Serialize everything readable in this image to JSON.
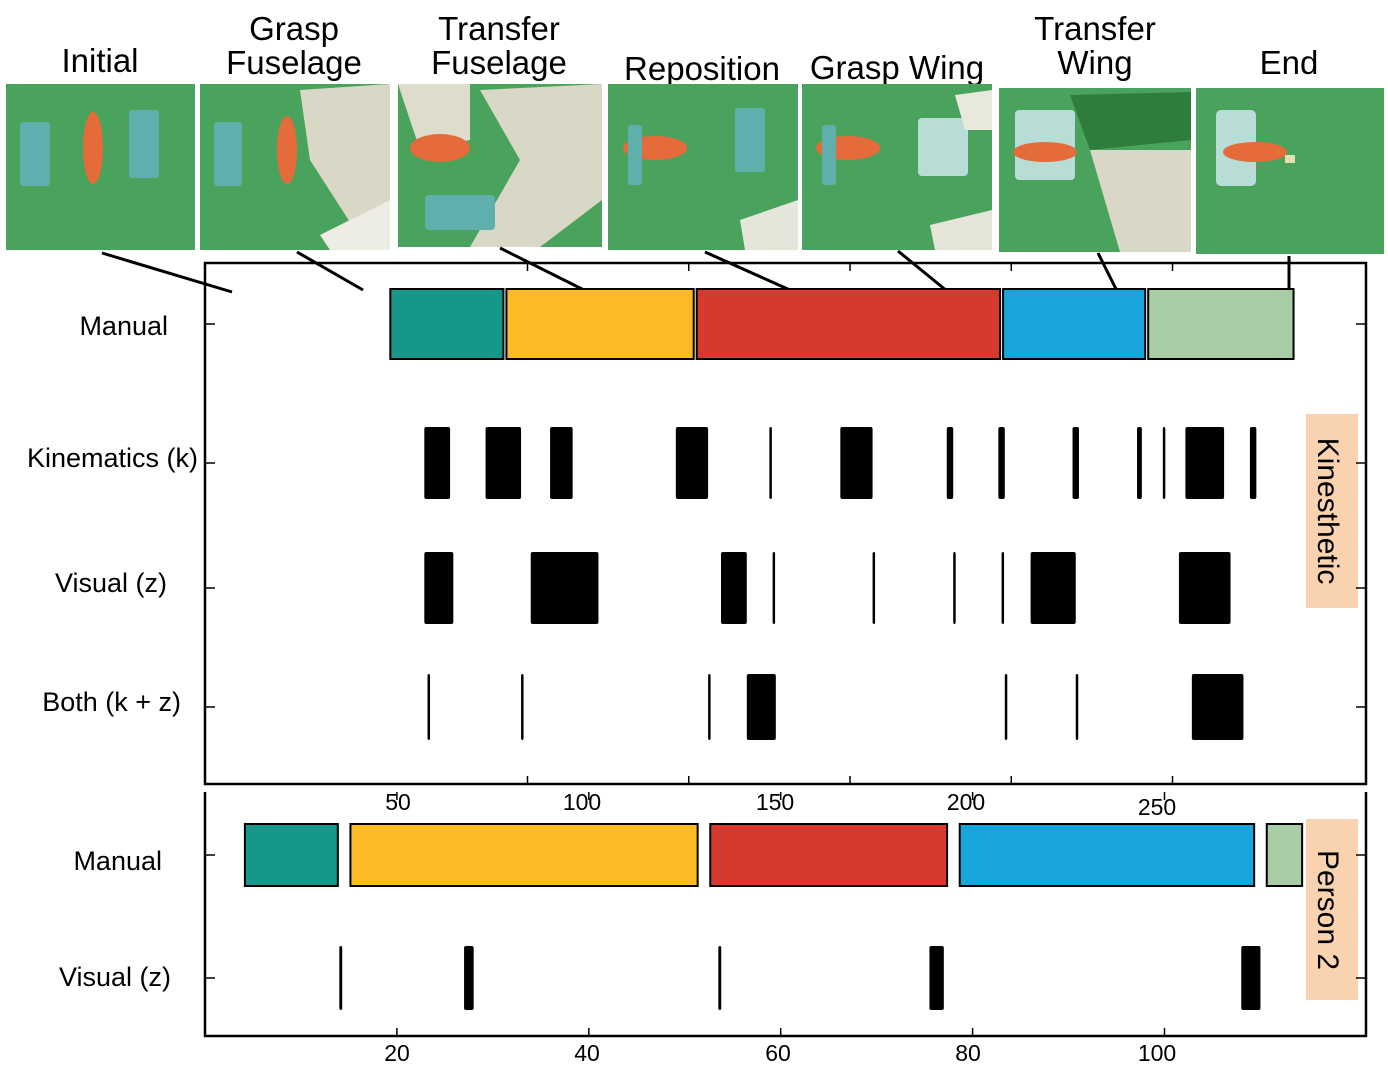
{
  "stages": [
    {
      "key": "initial",
      "lines": [
        "Initial"
      ]
    },
    {
      "key": "grasp-fuselage",
      "lines": [
        "Grasp",
        "Fuselage"
      ]
    },
    {
      "key": "transfer-fuselage",
      "lines": [
        "Transfer",
        "Fuselage"
      ]
    },
    {
      "key": "reposition",
      "lines": [
        "Reposition"
      ]
    },
    {
      "key": "grasp-wing",
      "lines": [
        "Grasp Wing"
      ]
    },
    {
      "key": "transfer-wing",
      "lines": [
        "Transfer",
        "Wing"
      ]
    },
    {
      "key": "end",
      "lines": [
        "End"
      ]
    }
  ],
  "colors": {
    "initial": "#16978a",
    "grasp_fuselage": "#fcba27",
    "reposition": "#d6392e",
    "grasp_wing": "#17a5db",
    "transfer_wing": "#a8cda6",
    "marks": "#000000",
    "photo_bg": "#4aa35c",
    "side_label_bg": "#f9d3b0"
  },
  "chart_data": [
    {
      "type": "timeline",
      "name": "Kinesthetic",
      "side_label": "Kinesthetic",
      "xlim": [
        -50,
        310
      ],
      "xticks": [
        50,
        100,
        150,
        200,
        250
      ],
      "rows": [
        {
          "label": "Manual",
          "segments": [
            {
              "start": 7,
              "end": 43,
              "color": "#16978a"
            },
            {
              "start": 43,
              "end": 102,
              "color": "#fcba27"
            },
            {
              "start": 102,
              "end": 197,
              "color": "#d6392e"
            },
            {
              "start": 197,
              "end": 242,
              "color": "#17a5db"
            },
            {
              "start": 242,
              "end": 288,
              "color": "#a8cda6"
            }
          ]
        },
        {
          "label": "Kinematics (k)",
          "marks": [
            [
              18,
              26
            ],
            [
              37,
              48
            ],
            [
              57,
              64
            ],
            [
              96,
              106
            ],
            [
              125,
              125.5
            ],
            [
              147,
              157
            ],
            [
              180,
              182
            ],
            [
              196,
              198
            ],
            [
              219,
              221
            ],
            [
              239,
              240.5
            ],
            [
              247,
              247.5
            ],
            [
              254,
              266
            ],
            [
              274,
              276
            ]
          ]
        },
        {
          "label": "Visual (z)",
          "marks": [
            [
              18,
              27
            ],
            [
              51,
              72
            ],
            [
              110,
              118
            ],
            [
              126,
              126.5
            ],
            [
              157,
              157.5
            ],
            [
              182,
              182.5
            ],
            [
              197,
              197.5
            ],
            [
              206,
              220
            ],
            [
              252,
              268
            ]
          ]
        },
        {
          "label": "Both (k + z)",
          "marks": [
            [
              19,
              19.5
            ],
            [
              48,
              48.5
            ],
            [
              106,
              106.5
            ],
            [
              118,
              127
            ],
            [
              198,
              198.5
            ],
            [
              220,
              220.5
            ],
            [
              256,
              272
            ]
          ]
        }
      ]
    },
    {
      "type": "timeline",
      "name": "Person 2",
      "side_label": "Person 2",
      "xlim": [
        0,
        121
      ],
      "xticks": [
        20,
        40,
        60,
        80,
        100
      ],
      "rows": [
        {
          "label": "Manual",
          "segments": [
            {
              "start": 4,
              "end": 14,
              "color": "#16978a"
            },
            {
              "start": 15,
              "end": 51.5,
              "color": "#fcba27"
            },
            {
              "start": 52.5,
              "end": 77.5,
              "color": "#d6392e"
            },
            {
              "start": 78.5,
              "end": 109.5,
              "color": "#17a5db"
            },
            {
              "start": 110.5,
              "end": 114.5,
              "color": "#a8cda6"
            }
          ]
        },
        {
          "label": "Visual (z)",
          "marks": [
            [
              14,
              14.3
            ],
            [
              27,
              28
            ],
            [
              53.5,
              53.8
            ],
            [
              75.5,
              77
            ],
            [
              108,
              110
            ]
          ]
        }
      ]
    }
  ]
}
